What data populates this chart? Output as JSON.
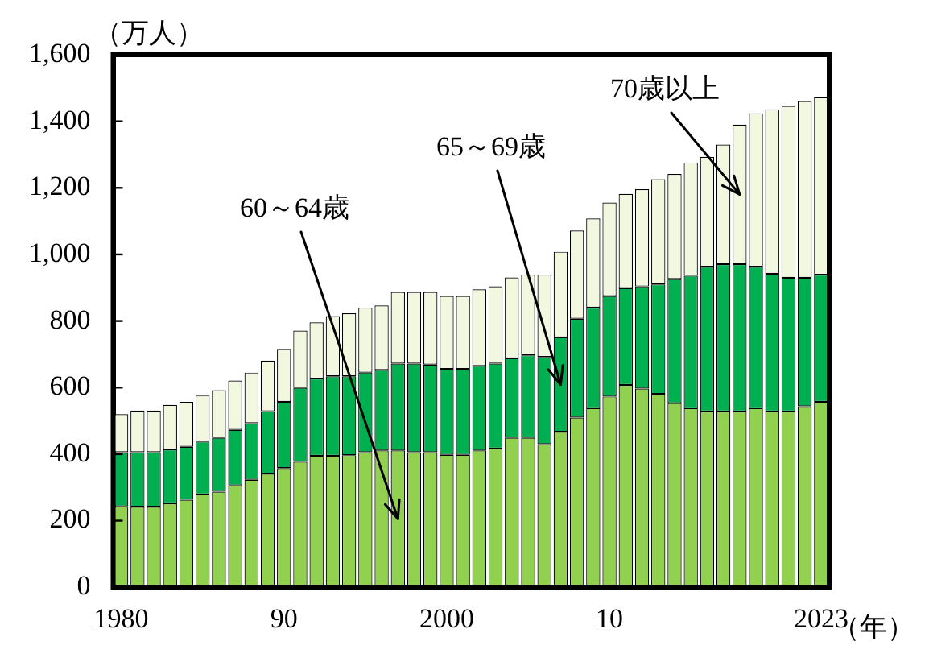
{
  "chart_data": {
    "type": "bar",
    "stacked": true,
    "ylabel": "（万人）",
    "xlabel": "（年）",
    "grid": false,
    "legend": false,
    "categories": [
      "1980",
      null,
      null,
      null,
      null,
      null,
      null,
      null,
      null,
      null,
      "90",
      null,
      null,
      null,
      null,
      null,
      null,
      null,
      null,
      null,
      "2000",
      null,
      null,
      null,
      null,
      null,
      null,
      null,
      null,
      null,
      "10",
      null,
      null,
      null,
      null,
      null,
      null,
      null,
      null,
      null,
      null,
      null,
      null,
      "2023"
    ],
    "ylim": [
      0,
      1600
    ],
    "yticks": [
      0,
      200,
      400,
      600,
      800,
      {
        "value": 1000,
        "label": "1,000"
      },
      {
        "value": 1200,
        "label": "1,200"
      },
      {
        "value": 1400,
        "label": "1,400"
      },
      {
        "value": 1600,
        "label": "1,600"
      }
    ],
    "series": [
      {
        "name": "60～64歳",
        "color": "#92d050",
        "values": [
          243,
          242,
          242,
          252,
          263,
          279,
          287,
          306,
          323,
          341,
          358,
          377,
          395,
          395,
          397,
          406,
          411,
          411,
          406,
          406,
          398,
          398,
          411,
          417,
          449,
          449,
          430,
          467,
          510,
          538,
          573,
          608,
          597,
          581,
          553,
          538,
          528,
          528,
          528,
          538,
          528,
          528,
          544,
          557
        ]
      },
      {
        "name": "65～69歳",
        "color": "#00b050",
        "values": [
          163,
          164,
          164,
          162,
          159,
          159,
          162,
          167,
          170,
          188,
          199,
          222,
          232,
          239,
          237,
          239,
          242,
          261,
          266,
          263,
          258,
          258,
          254,
          255,
          239,
          248,
          262,
          284,
          297,
          302,
          302,
          291,
          307,
          329,
          373,
          398,
          435,
          443,
          443,
          425,
          414,
          402,
          386,
          382
        ]
      },
      {
        "name": "70歳以上",
        "color": "#f2f7e0",
        "values": [
          114,
          125,
          125,
          134,
          135,
          138,
          143,
          148,
          152,
          152,
          159,
          172,
          169,
          181,
          189,
          195,
          194,
          215,
          215,
          218,
          219,
          219,
          230,
          232,
          243,
          242,
          247,
          257,
          265,
          268,
          281,
          283,
          292,
          316,
          316,
          340,
          330,
          359,
          419,
          461,
          494,
          516,
          531,
          533
        ]
      }
    ]
  }
}
